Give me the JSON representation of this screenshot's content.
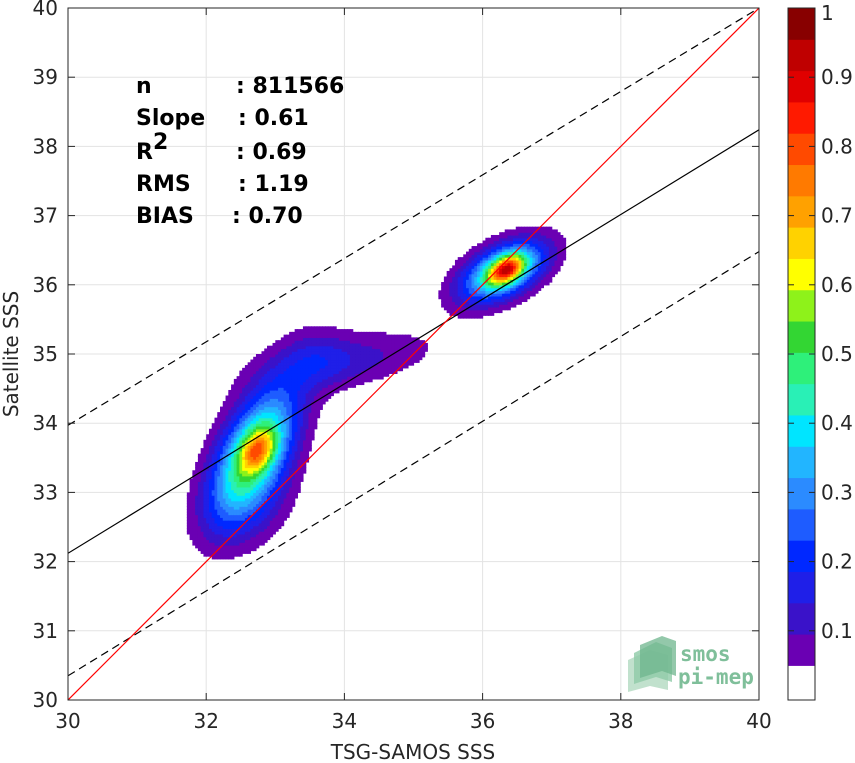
{
  "chart_data": {
    "type": "contour-density",
    "xlabel": "TSG-SAMOS SSS",
    "ylabel": "Satellite SSS",
    "xlim": [
      30,
      40
    ],
    "ylim": [
      30,
      40
    ],
    "xticks": [
      30,
      32,
      34,
      36,
      38,
      40
    ],
    "yticks": [
      30,
      31,
      32,
      33,
      34,
      35,
      36,
      37,
      38,
      39,
      40
    ],
    "grid": true,
    "stats": [
      {
        "label": "n",
        "value": ": 811566"
      },
      {
        "label": "Slope",
        "value": ": 0.61"
      },
      {
        "label": "R",
        "sup": "2",
        "value": ": 0.69"
      },
      {
        "label": "RMS",
        "value": ": 1.19"
      },
      {
        "label": "BIAS",
        "value": ": 0.70"
      }
    ],
    "lines": {
      "identity": {
        "color": "#ff0000",
        "points": [
          [
            30,
            30
          ],
          [
            40,
            40
          ]
        ]
      },
      "regression": {
        "color": "#000000",
        "points": [
          [
            30,
            32.12
          ],
          [
            40,
            38.24
          ]
        ]
      },
      "upper_bound": {
        "color": "#000000",
        "dash": true,
        "points": [
          [
            30,
            33.97
          ],
          [
            40,
            40.0
          ]
        ]
      },
      "lower_bound": {
        "color": "#000000",
        "dash": true,
        "points": [
          [
            30,
            30.35
          ],
          [
            40,
            36.48
          ]
        ]
      }
    },
    "density_clusters": [
      {
        "center": [
          32.7,
          33.6
        ],
        "peak": 0.75
      },
      {
        "center": [
          36.3,
          36.2
        ],
        "peak": 0.95
      }
    ],
    "colorbar": {
      "ticks": [
        "0.1",
        "0.2",
        "0.3",
        "0.4",
        "0.5",
        "0.6",
        "0.7",
        "0.8",
        "0.9",
        "1"
      ],
      "tick_values": [
        0.1,
        0.2,
        0.3,
        0.4,
        0.5,
        0.6,
        0.7,
        0.8,
        0.9,
        1.0
      ],
      "range": [
        0.0,
        1.0
      ],
      "bottom_white_fraction": 0.05,
      "colors": [
        "#ffffff",
        "#6a00b3",
        "#3a12c9",
        "#1f1fe8",
        "#0028ff",
        "#1e5cff",
        "#2b8bff",
        "#22b5ff",
        "#00e5ff",
        "#29f0b6",
        "#2ef07a",
        "#33d633",
        "#8ef21a",
        "#ffff00",
        "#ffd200",
        "#ffa100",
        "#ff7a00",
        "#ff4a00",
        "#ff1a00",
        "#e00000",
        "#bf0000",
        "#880000"
      ]
    }
  },
  "logo": {
    "line1": "smos",
    "line2": "pi-mep"
  }
}
